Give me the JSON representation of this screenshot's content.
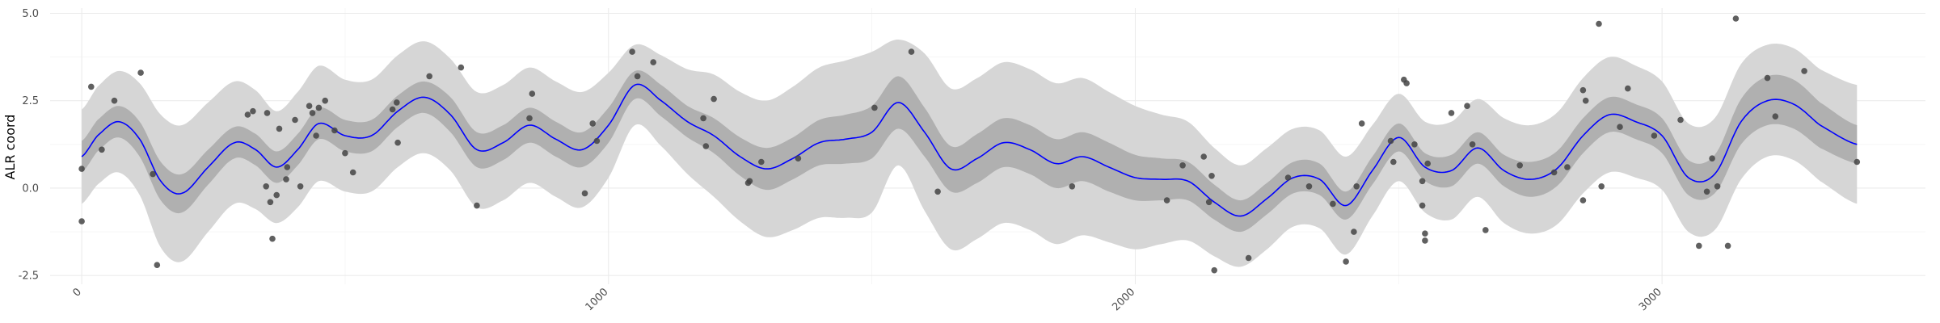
{
  "chart_data": {
    "type": "line",
    "title": "",
    "xlabel": "",
    "ylabel": "ALR coord",
    "xlim": [
      -60,
      3500
    ],
    "ylim": [
      -2.75,
      5.15
    ],
    "x_ticks": [
      0,
      1000,
      2000,
      3000
    ],
    "x_tick_labels": [
      "0",
      "1000",
      "2000",
      "3000"
    ],
    "y_ticks": [
      -2.5,
      0.0,
      2.5,
      5.0
    ],
    "y_tick_labels": [
      "-2.5",
      "0.0",
      "2.5",
      "5.0"
    ],
    "x_tick_label_rotation": "45 degrees",
    "grid": true,
    "colors": {
      "line": "#0000ff",
      "inner_band": "#b0b0b0",
      "outer_band": "#d6d6d6",
      "points": "#444444",
      "grid_major": "#ebebeb",
      "grid_minor": "#f4f4f4"
    },
    "fit": {
      "x": [
        0,
        30,
        70,
        110,
        150,
        190,
        240,
        290,
        330,
        370,
        410,
        450,
        500,
        550,
        600,
        650,
        700,
        750,
        800,
        850,
        900,
        950,
        1000,
        1050,
        1100,
        1150,
        1200,
        1250,
        1300,
        1350,
        1400,
        1450,
        1500,
        1550,
        1600,
        1650,
        1700,
        1750,
        1800,
        1850,
        1900,
        1950,
        2000,
        2050,
        2100,
        2150,
        2200,
        2250,
        2300,
        2350,
        2400,
        2450,
        2500,
        2550,
        2600,
        2650,
        2700,
        2750,
        2800,
        2850,
        2900,
        2950,
        3000,
        3050,
        3100,
        3150,
        3200,
        3250,
        3300,
        3370
      ],
      "y": [
        0.9,
        1.5,
        1.9,
        1.4,
        0.2,
        -0.15,
        0.6,
        1.3,
        1.1,
        0.6,
        1.1,
        1.85,
        1.5,
        1.5,
        2.2,
        2.6,
        2.1,
        1.1,
        1.3,
        1.8,
        1.4,
        1.1,
        1.8,
        2.95,
        2.5,
        1.9,
        1.5,
        0.9,
        0.55,
        0.85,
        1.3,
        1.4,
        1.6,
        2.45,
        1.6,
        0.55,
        0.85,
        1.3,
        1.1,
        0.7,
        0.9,
        0.6,
        0.3,
        0.25,
        0.2,
        -0.4,
        -0.8,
        -0.3,
        0.3,
        0.25,
        -0.5,
        0.5,
        1.45,
        0.6,
        0.5,
        1.15,
        0.5,
        0.25,
        0.55,
        1.5,
        2.1,
        1.9,
        1.5,
        0.3,
        0.4,
        1.9,
        2.5,
        2.4,
        1.8,
        1.25
      ],
      "inner_halfwidth": [
        0.45,
        0.45,
        0.45,
        0.5,
        0.55,
        0.55,
        0.5,
        0.45,
        0.45,
        0.45,
        0.45,
        0.45,
        0.45,
        0.45,
        0.45,
        0.45,
        0.5,
        0.5,
        0.5,
        0.5,
        0.5,
        0.5,
        0.5,
        0.4,
        0.45,
        0.45,
        0.5,
        0.55,
        0.6,
        0.6,
        0.65,
        0.7,
        0.75,
        0.75,
        0.7,
        0.65,
        0.7,
        0.7,
        0.7,
        0.7,
        0.7,
        0.7,
        0.65,
        0.6,
        0.55,
        0.5,
        0.45,
        0.45,
        0.45,
        0.45,
        0.4,
        0.4,
        0.4,
        0.4,
        0.45,
        0.45,
        0.45,
        0.5,
        0.5,
        0.5,
        0.5,
        0.5,
        0.5,
        0.5,
        0.55,
        0.65,
        0.7,
        0.7,
        0.65,
        0.55
      ],
      "outer_halfwidth": [
        1.35,
        1.4,
        1.45,
        1.6,
        1.9,
        1.95,
        1.85,
        1.75,
        1.7,
        1.6,
        1.65,
        1.65,
        1.6,
        1.6,
        1.6,
        1.6,
        1.6,
        1.65,
        1.65,
        1.65,
        1.65,
        1.65,
        1.5,
        1.15,
        1.3,
        1.5,
        1.75,
        1.85,
        1.95,
        2.05,
        2.15,
        2.25,
        2.3,
        1.8,
        2.25,
        2.3,
        2.3,
        2.3,
        2.3,
        2.3,
        2.25,
        2.15,
        2.05,
        1.85,
        1.7,
        1.55,
        1.45,
        1.45,
        1.4,
        1.4,
        1.4,
        1.3,
        1.25,
        1.3,
        1.4,
        1.4,
        1.5,
        1.55,
        1.6,
        1.65,
        1.65,
        1.6,
        1.55,
        1.55,
        1.6,
        1.65,
        1.6,
        1.6,
        1.6,
        1.7
      ]
    },
    "points": [
      {
        "x": 0,
        "y": 0.55
      },
      {
        "x": 0,
        "y": -0.95
      },
      {
        "x": 18,
        "y": 2.9
      },
      {
        "x": 38,
        "y": 1.1
      },
      {
        "x": 62,
        "y": 2.5
      },
      {
        "x": 112,
        "y": 3.3
      },
      {
        "x": 135,
        "y": 0.4
      },
      {
        "x": 143,
        "y": -2.2
      },
      {
        "x": 315,
        "y": 2.1
      },
      {
        "x": 325,
        "y": 2.2
      },
      {
        "x": 350,
        "y": 0.05
      },
      {
        "x": 352,
        "y": 2.15
      },
      {
        "x": 358,
        "y": -0.4
      },
      {
        "x": 362,
        "y": -1.45
      },
      {
        "x": 370,
        "y": -0.2
      },
      {
        "x": 375,
        "y": 1.7
      },
      {
        "x": 388,
        "y": 0.25
      },
      {
        "x": 390,
        "y": 0.6
      },
      {
        "x": 405,
        "y": 1.95
      },
      {
        "x": 415,
        "y": 0.05
      },
      {
        "x": 432,
        "y": 2.35
      },
      {
        "x": 438,
        "y": 2.15
      },
      {
        "x": 445,
        "y": 1.5
      },
      {
        "x": 450,
        "y": 2.3
      },
      {
        "x": 462,
        "y": 2.5
      },
      {
        "x": 480,
        "y": 1.65
      },
      {
        "x": 500,
        "y": 1.0
      },
      {
        "x": 515,
        "y": 0.45
      },
      {
        "x": 590,
        "y": 2.25
      },
      {
        "x": 598,
        "y": 2.45
      },
      {
        "x": 600,
        "y": 1.3
      },
      {
        "x": 660,
        "y": 3.2
      },
      {
        "x": 720,
        "y": 3.45
      },
      {
        "x": 750,
        "y": -0.5
      },
      {
        "x": 850,
        "y": 2.0
      },
      {
        "x": 855,
        "y": 2.7
      },
      {
        "x": 955,
        "y": -0.15
      },
      {
        "x": 970,
        "y": 1.85
      },
      {
        "x": 978,
        "y": 1.35
      },
      {
        "x": 1045,
        "y": 3.9
      },
      {
        "x": 1055,
        "y": 3.2
      },
      {
        "x": 1085,
        "y": 3.6
      },
      {
        "x": 1180,
        "y": 2.0
      },
      {
        "x": 1185,
        "y": 1.2
      },
      {
        "x": 1200,
        "y": 2.55
      },
      {
        "x": 1265,
        "y": 0.15
      },
      {
        "x": 1268,
        "y": 0.2
      },
      {
        "x": 1290,
        "y": 0.75
      },
      {
        "x": 1360,
        "y": 0.85
      },
      {
        "x": 1505,
        "y": 2.3
      },
      {
        "x": 1575,
        "y": 3.9
      },
      {
        "x": 1625,
        "y": -0.1
      },
      {
        "x": 1880,
        "y": 0.05
      },
      {
        "x": 2060,
        "y": -0.35
      },
      {
        "x": 2090,
        "y": 0.65
      },
      {
        "x": 2130,
        "y": 0.9
      },
      {
        "x": 2140,
        "y": -0.4
      },
      {
        "x": 2145,
        "y": 0.35
      },
      {
        "x": 2150,
        "y": -2.35
      },
      {
        "x": 2215,
        "y": -2.0
      },
      {
        "x": 2290,
        "y": 0.3
      },
      {
        "x": 2330,
        "y": 0.05
      },
      {
        "x": 2375,
        "y": -0.45
      },
      {
        "x": 2400,
        "y": -2.1
      },
      {
        "x": 2415,
        "y": -1.25
      },
      {
        "x": 2420,
        "y": 0.05
      },
      {
        "x": 2430,
        "y": 1.85
      },
      {
        "x": 2485,
        "y": 1.35
      },
      {
        "x": 2490,
        "y": 0.75
      },
      {
        "x": 2510,
        "y": 3.1
      },
      {
        "x": 2515,
        "y": 3.0
      },
      {
        "x": 2530,
        "y": 1.25
      },
      {
        "x": 2545,
        "y": -0.5
      },
      {
        "x": 2545,
        "y": 0.2
      },
      {
        "x": 2550,
        "y": -1.3
      },
      {
        "x": 2550,
        "y": -1.5
      },
      {
        "x": 2555,
        "y": 0.7
      },
      {
        "x": 2600,
        "y": 2.15
      },
      {
        "x": 2630,
        "y": 2.35
      },
      {
        "x": 2640,
        "y": 1.25
      },
      {
        "x": 2665,
        "y": -1.2
      },
      {
        "x": 2730,
        "y": 0.65
      },
      {
        "x": 2795,
        "y": 0.45
      },
      {
        "x": 2820,
        "y": 0.6
      },
      {
        "x": 2850,
        "y": -0.35
      },
      {
        "x": 2850,
        "y": 2.8
      },
      {
        "x": 2855,
        "y": 2.5
      },
      {
        "x": 2880,
        "y": 4.7
      },
      {
        "x": 2885,
        "y": 0.05
      },
      {
        "x": 2920,
        "y": 1.75
      },
      {
        "x": 2935,
        "y": 2.85
      },
      {
        "x": 2985,
        "y": 1.5
      },
      {
        "x": 3035,
        "y": 1.95
      },
      {
        "x": 3070,
        "y": -1.65
      },
      {
        "x": 3085,
        "y": -0.1
      },
      {
        "x": 3095,
        "y": 0.85
      },
      {
        "x": 3105,
        "y": 0.05
      },
      {
        "x": 3125,
        "y": -1.65
      },
      {
        "x": 3140,
        "y": 4.85
      },
      {
        "x": 3200,
        "y": 3.15
      },
      {
        "x": 3215,
        "y": 2.05
      },
      {
        "x": 3270,
        "y": 3.35
      },
      {
        "x": 3370,
        "y": 0.75
      }
    ]
  }
}
